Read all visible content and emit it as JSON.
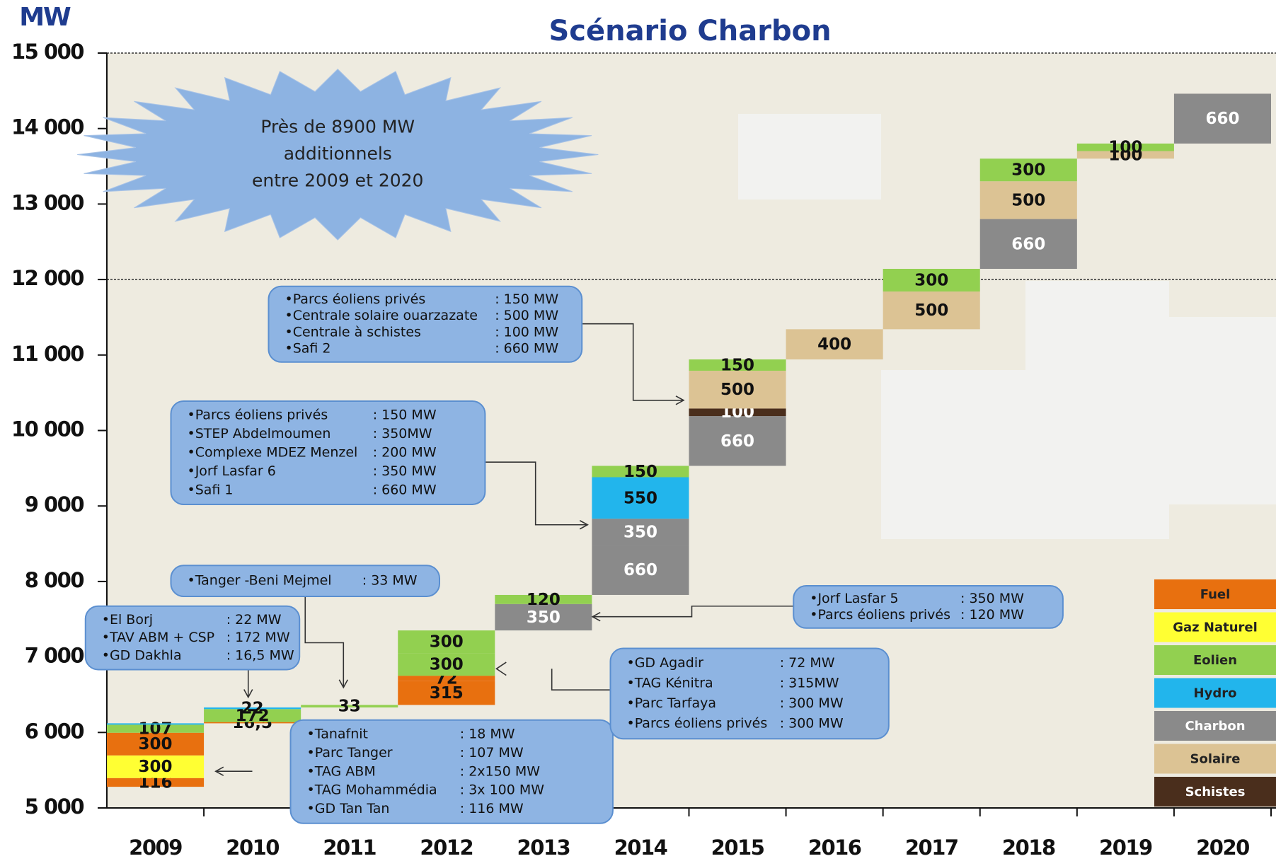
{
  "chart_data": {
    "type": "waterfall",
    "title": "Scénario Charbon",
    "y_axis_label": "MW",
    "categories": [
      "2009",
      "2010",
      "2011",
      "2012",
      "2013",
      "2014",
      "2015",
      "2016",
      "2017",
      "2018",
      "2019",
      "2020"
    ],
    "base": 5280,
    "ylim": [
      5000,
      15000
    ],
    "yticks": [
      {
        "value": 5000,
        "label": "5 000"
      },
      {
        "value": 6000,
        "label": "6 000"
      },
      {
        "value": 7000,
        "label": "7 000"
      },
      {
        "value": 8000,
        "label": "8 000"
      },
      {
        "value": 9000,
        "label": "9 000"
      },
      {
        "value": 10000,
        "label": "10 000"
      },
      {
        "value": 11000,
        "label": "11 000"
      },
      {
        "value": 12000,
        "label": "12 000"
      },
      {
        "value": 13000,
        "label": "13 000"
      },
      {
        "value": 14000,
        "label": "14 000"
      },
      {
        "value": 15000,
        "label": "15 000"
      }
    ],
    "grid_lines": [
      12000,
      15000
    ],
    "legend": [
      {
        "name": "Fuel",
        "color": "#e8700f",
        "text_color": "#222"
      },
      {
        "name": "Gaz Naturel",
        "color": "#ffff33",
        "text_color": "#222"
      },
      {
        "name": "Eolien",
        "color": "#92d050",
        "text_color": "#222"
      },
      {
        "name": "Hydro",
        "color": "#22b5ec",
        "text_color": "#222"
      },
      {
        "name": "Charbon",
        "color": "#8a8a8a",
        "text_color": "#fff"
      },
      {
        "name": "Solaire",
        "color": "#dcc394",
        "text_color": "#222"
      },
      {
        "name": "Schistes",
        "color": "#4a2e1c",
        "text_color": "#fff"
      }
    ],
    "stacks": [
      [
        {
          "source": "Fuel",
          "value": 116
        },
        {
          "source": "Gaz Naturel",
          "value": 300
        },
        {
          "source": "Fuel",
          "value": 300
        },
        {
          "source": "Eolien",
          "value": 107
        },
        {
          "source": "Hydro",
          "value": 18,
          "value_label": null
        }
      ],
      [
        {
          "source": "Fuel",
          "value": 16.5,
          "value_label": "16,5"
        },
        {
          "source": "Eolien",
          "value": 172
        },
        {
          "source": "Hydro",
          "value": 22
        }
      ],
      [
        {
          "source": "Eolien",
          "value": 33
        }
      ],
      [
        {
          "source": "Fuel",
          "value": 315
        },
        {
          "source": "Fuel",
          "value": 72
        },
        {
          "source": "Eolien",
          "value": 300
        },
        {
          "source": "Eolien",
          "value": 300
        }
      ],
      [
        {
          "source": "Charbon",
          "value": 350
        },
        {
          "source": "Eolien",
          "value": 120
        }
      ],
      [
        {
          "source": "Charbon",
          "value": 660
        },
        {
          "source": "Charbon",
          "value": 350
        },
        {
          "source": "Hydro",
          "value": 550
        },
        {
          "source": "Eolien",
          "value": 150
        }
      ],
      [
        {
          "source": "Charbon",
          "value": 660
        },
        {
          "source": "Schistes",
          "value": 100
        },
        {
          "source": "Solaire",
          "value": 500
        },
        {
          "source": "Eolien",
          "value": 150
        }
      ],
      [
        {
          "source": "Solaire",
          "value": 400
        }
      ],
      [
        {
          "source": "Solaire",
          "value": 500
        },
        {
          "source": "Eolien",
          "value": 300
        }
      ],
      [
        {
          "source": "Charbon",
          "value": 660
        },
        {
          "source": "Solaire",
          "value": 500
        },
        {
          "source": "Eolien",
          "value": 300
        }
      ],
      [
        {
          "source": "Solaire",
          "value": 100
        },
        {
          "source": "Eolien",
          "value": 100
        }
      ],
      [
        {
          "source": "Charbon",
          "value": 660
        }
      ]
    ],
    "starburst": [
      "Près de 8900 MW",
      "additionnels",
      "entre 2009 et  2020"
    ],
    "callouts": [
      {
        "lines": [
          {
            "name": "•Parcs éoliens privés",
            "value": ": 150 MW"
          },
          {
            "name": "•Centrale solaire ouarzazate",
            "value": ": 500 MW"
          },
          {
            "name": "•Centrale à schistes",
            "value": ": 100 MW"
          },
          {
            "name": "•Safi 2",
            "value": ": 660 MW"
          }
        ]
      },
      {
        "lines": [
          {
            "name": "•Parcs éoliens privés",
            "value": ": 150 MW"
          },
          {
            "name": "•STEP Abdelmoumen",
            "value": ": 350MW"
          },
          {
            "name": "•Complexe MDEZ Menzel",
            "value": ": 200 MW"
          },
          {
            "name": "•Jorf Lasfar 6",
            "value": ": 350 MW"
          },
          {
            "name": "•Safi 1",
            "value": ": 660 MW"
          }
        ]
      },
      {
        "lines": [
          {
            "name": "•Tanger -Beni Mejmel",
            "value": ": 33 MW"
          }
        ]
      },
      {
        "lines": [
          {
            "name": "•El Borj",
            "value": ": 22 MW"
          },
          {
            "name": "•TAV ABM + CSP",
            "value": ": 172 MW"
          },
          {
            "name": "•GD Dakhla",
            "value": ": 16,5 MW"
          }
        ]
      },
      {
        "lines": [
          {
            "name": "•Tanafnit",
            "value": ": 18 MW"
          },
          {
            "name": "•Parc Tanger",
            "value": ": 107 MW"
          },
          {
            "name": "•TAG  ABM",
            "value": ": 2x150 MW"
          },
          {
            "name": "•TAG Mohammédia",
            "value": ": 3x 100 MW"
          },
          {
            "name": "•GD Tan Tan",
            "value": ": 116 MW"
          }
        ]
      },
      {
        "lines": [
          {
            "name": "•GD Agadir",
            "value": ": 72 MW"
          },
          {
            "name": "•TAG Kénitra",
            "value": ": 315MW"
          },
          {
            "name": "•Parc Tarfaya",
            "value": ": 300 MW"
          },
          {
            "name": "•Parcs éoliens privés",
            "value": ": 300 MW"
          }
        ]
      },
      {
        "lines": [
          {
            "name": "•Jorf Lasfar 5",
            "value": ": 350 MW"
          },
          {
            "name": "•Parcs éoliens privés",
            "value": ": 120 MW"
          }
        ]
      }
    ]
  }
}
